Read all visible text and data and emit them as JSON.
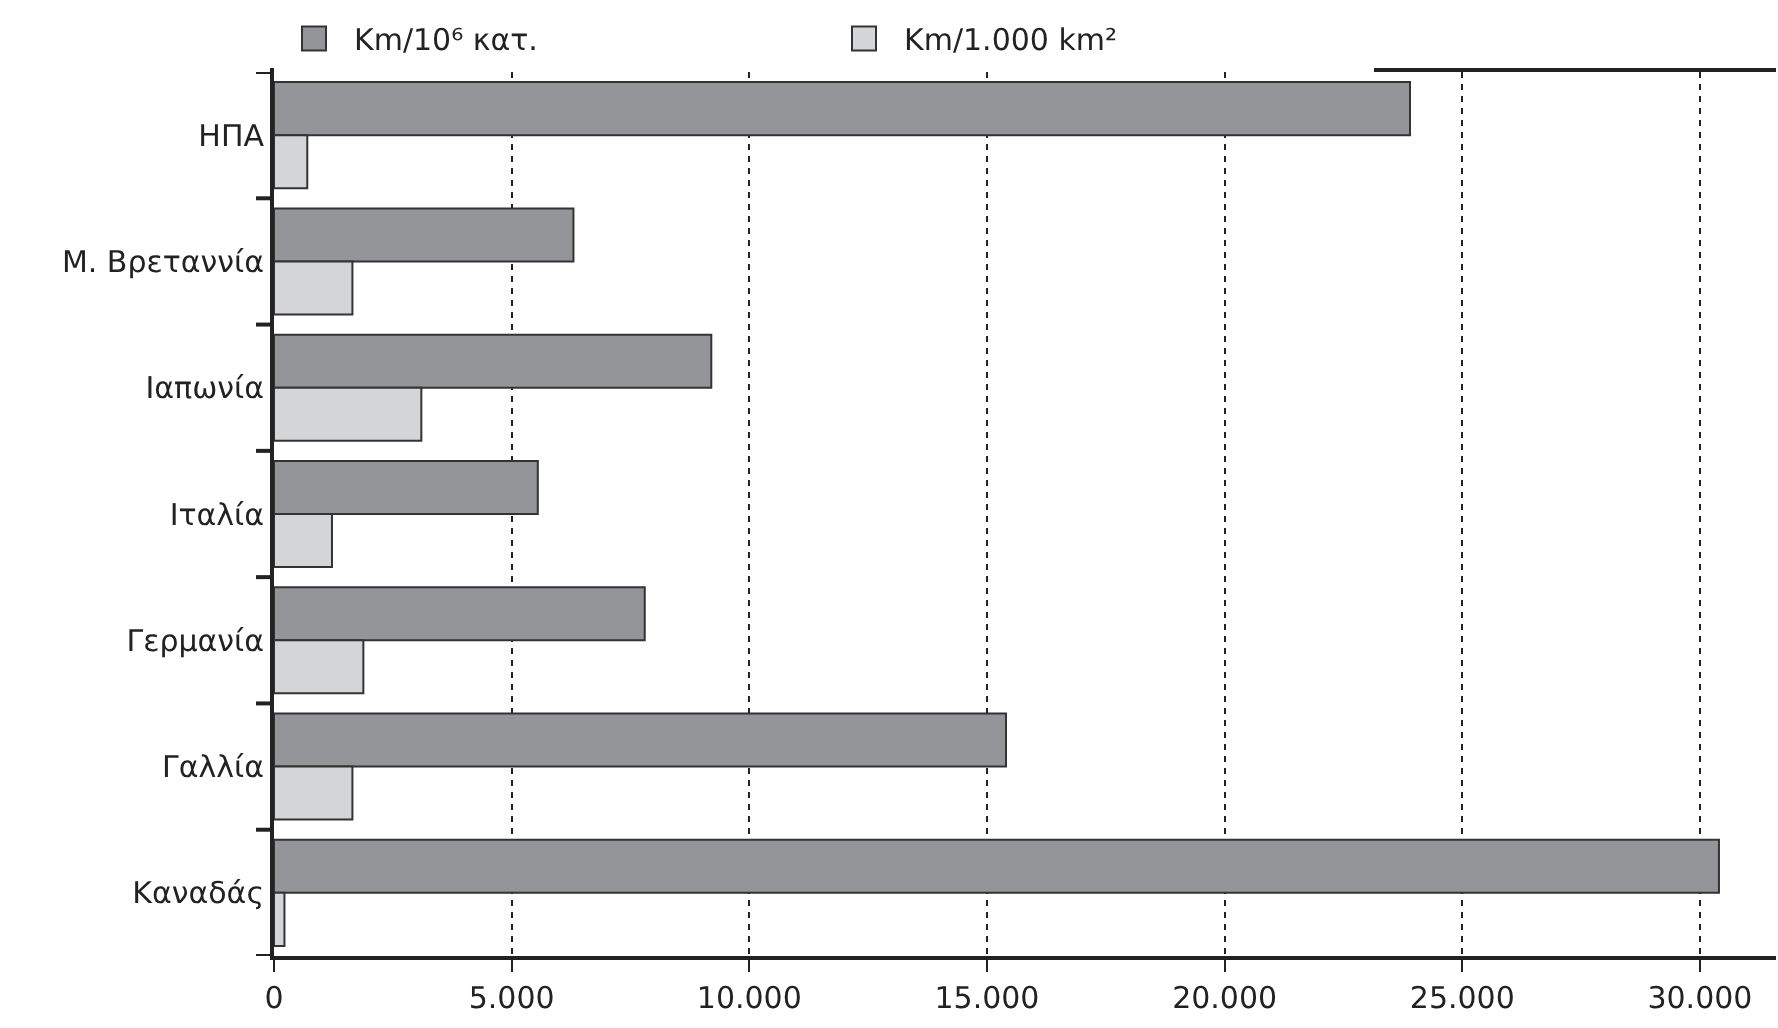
{
  "chart_data": {
    "type": "bar",
    "orientation": "horizontal",
    "categories": [
      "ΗΠΑ",
      "Μ. Βρεταννία",
      "Ιαπωνία",
      "Ιταλία",
      "Γερμανία",
      "Γαλλία",
      "Καναδάς"
    ],
    "series": [
      {
        "name": "Km/10⁶ κατ.",
        "color": "#949599",
        "values": [
          23900,
          6300,
          9200,
          5550,
          7800,
          15400,
          30400
        ]
      },
      {
        "name": "Km/1.000 km²",
        "color": "#d4d5d6",
        "values": [
          700,
          1650,
          3100,
          1220,
          1880,
          1650,
          220
        ]
      }
    ],
    "xlim": [
      0,
      31600
    ],
    "xticks": [
      0,
      {
        "value": 5000,
        "label": "5.000"
      },
      {
        "value": 10000,
        "label": "10.000"
      },
      {
        "value": 15000,
        "label": "15.000"
      },
      {
        "value": 20000,
        "label": "20.000"
      },
      {
        "value": 25000,
        "label": "25.000"
      },
      {
        "value": 30000,
        "label": "30.000"
      }
    ],
    "grid": "x",
    "legend": "top",
    "line_style": "dotted"
  }
}
